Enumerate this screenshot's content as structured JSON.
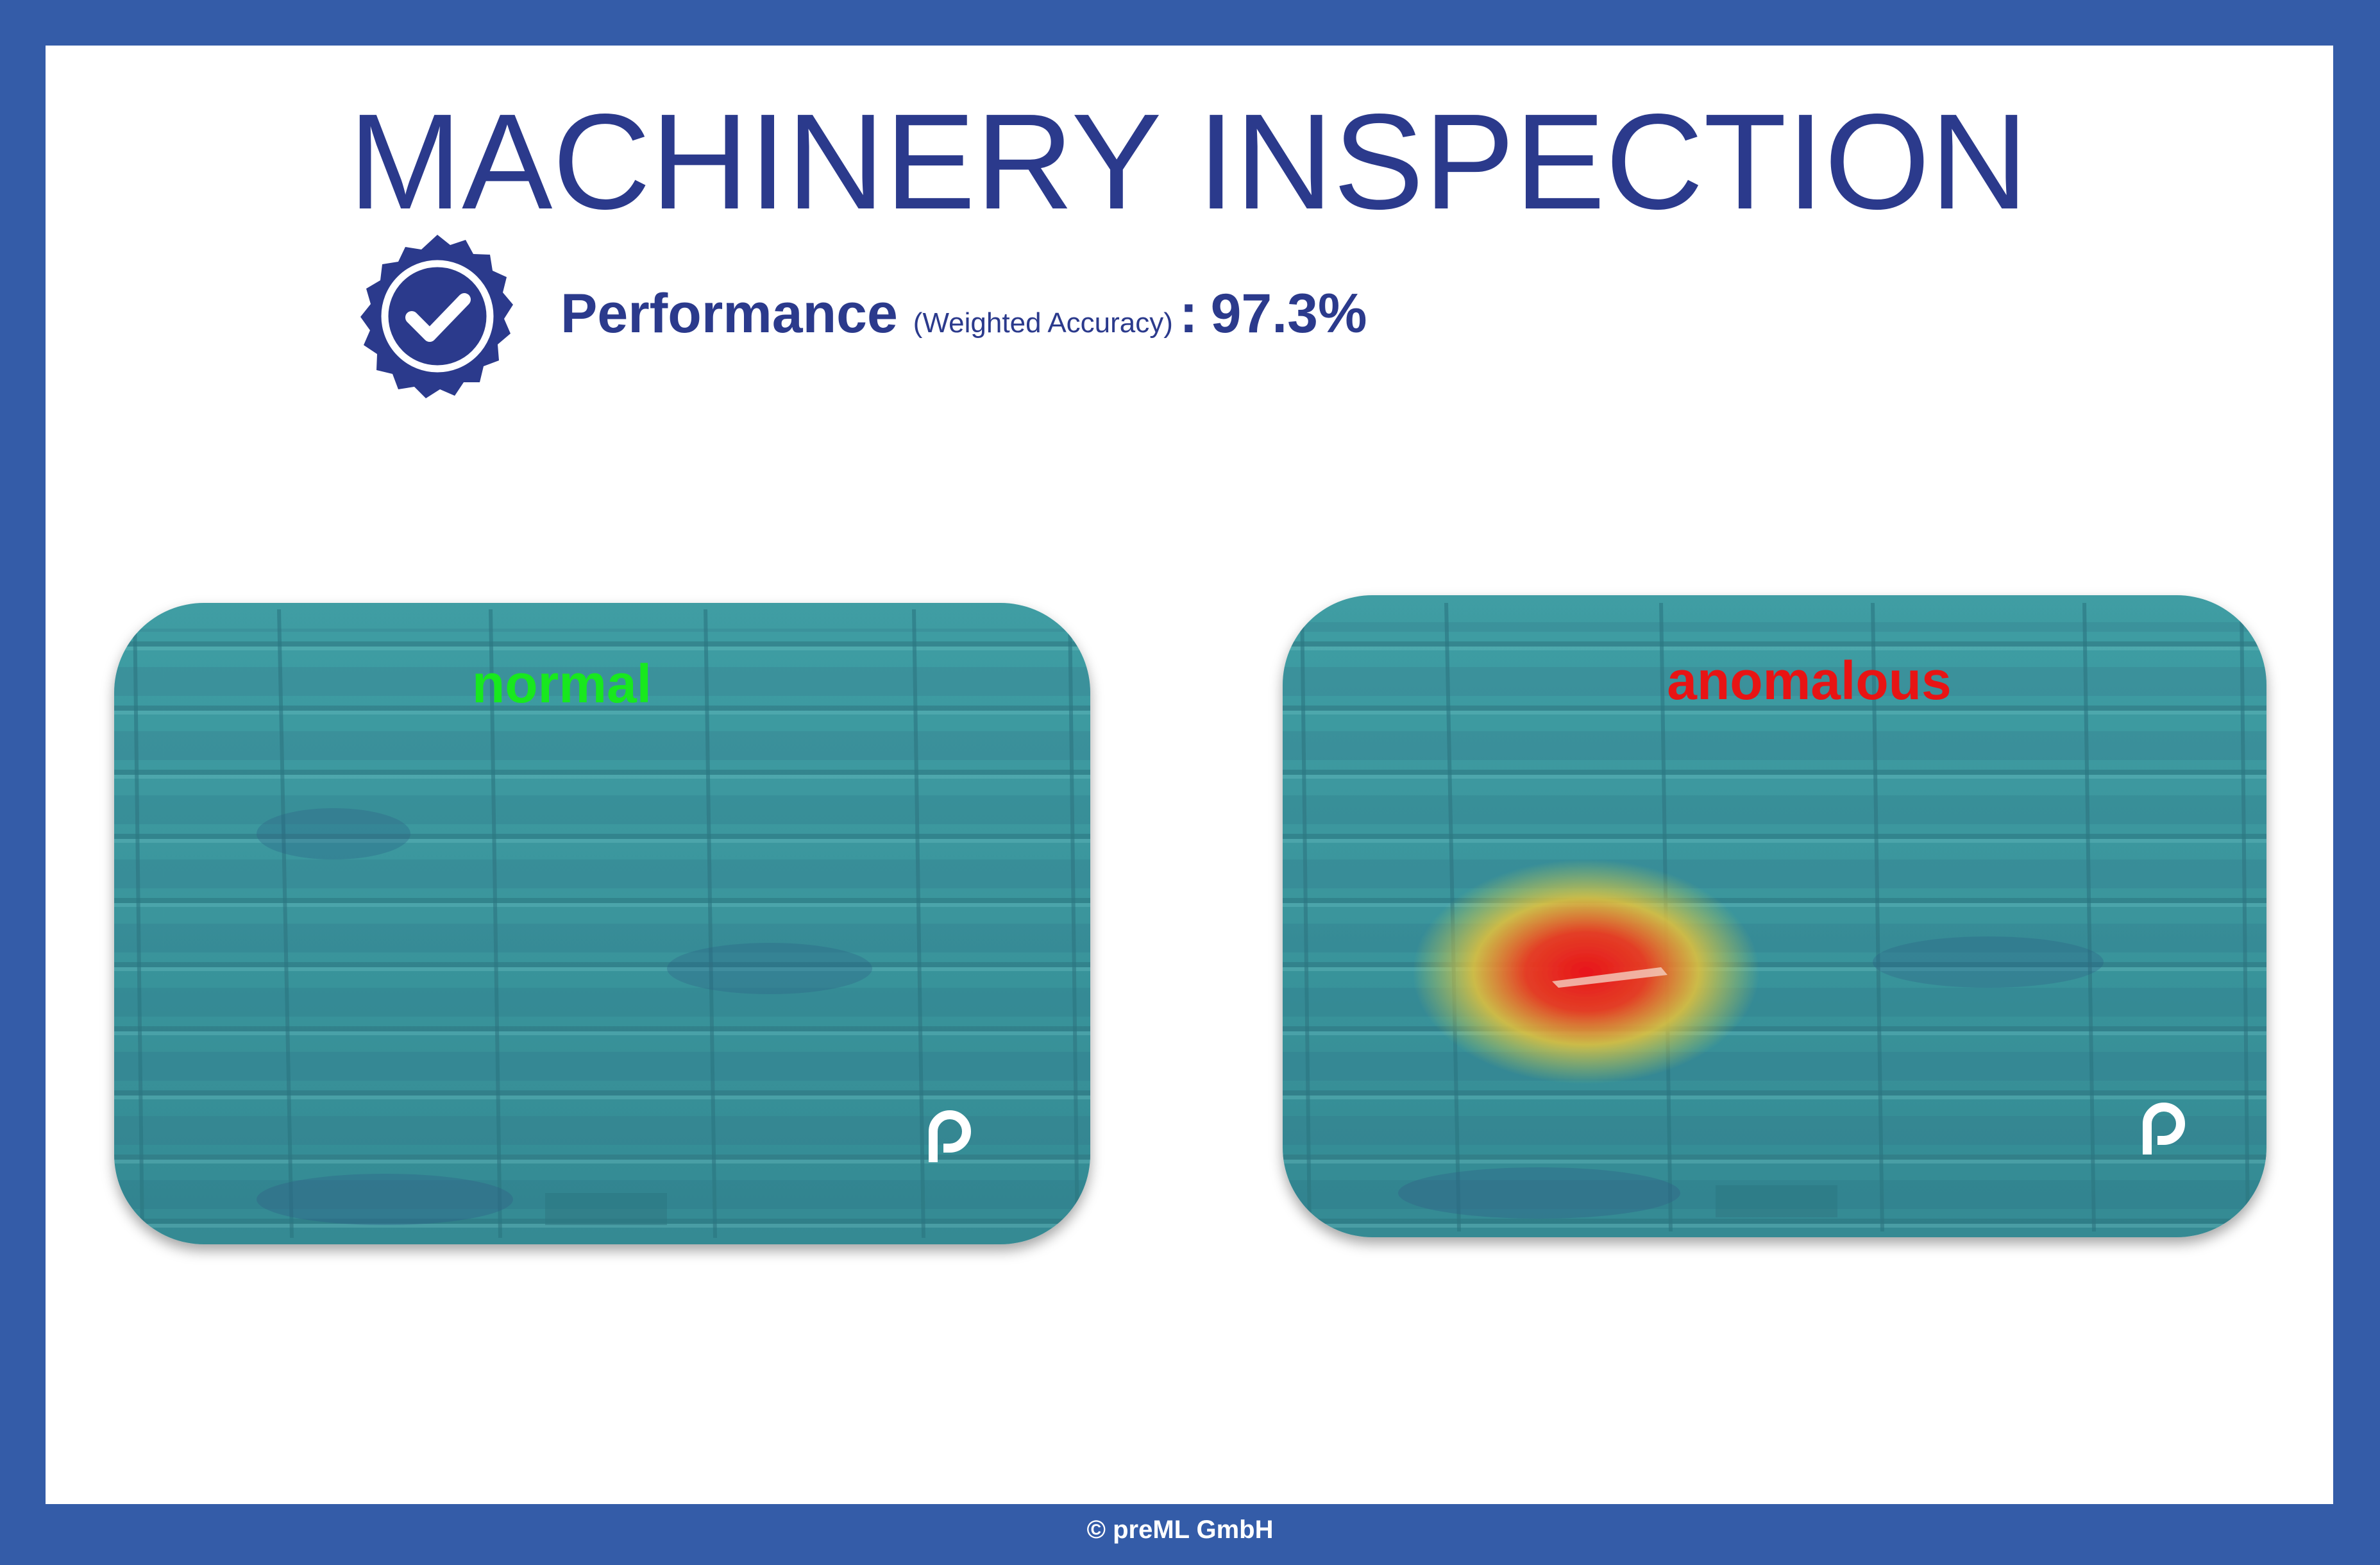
{
  "title": "MACHINERY INSPECTION",
  "performance": {
    "label": "Performance",
    "metric": "(Weighted Accuracy)",
    "separator": ":",
    "value": "97.3%"
  },
  "panels": [
    {
      "label": "normal"
    },
    {
      "label": "anomalous"
    }
  ],
  "footer": "© preML GmbH"
}
